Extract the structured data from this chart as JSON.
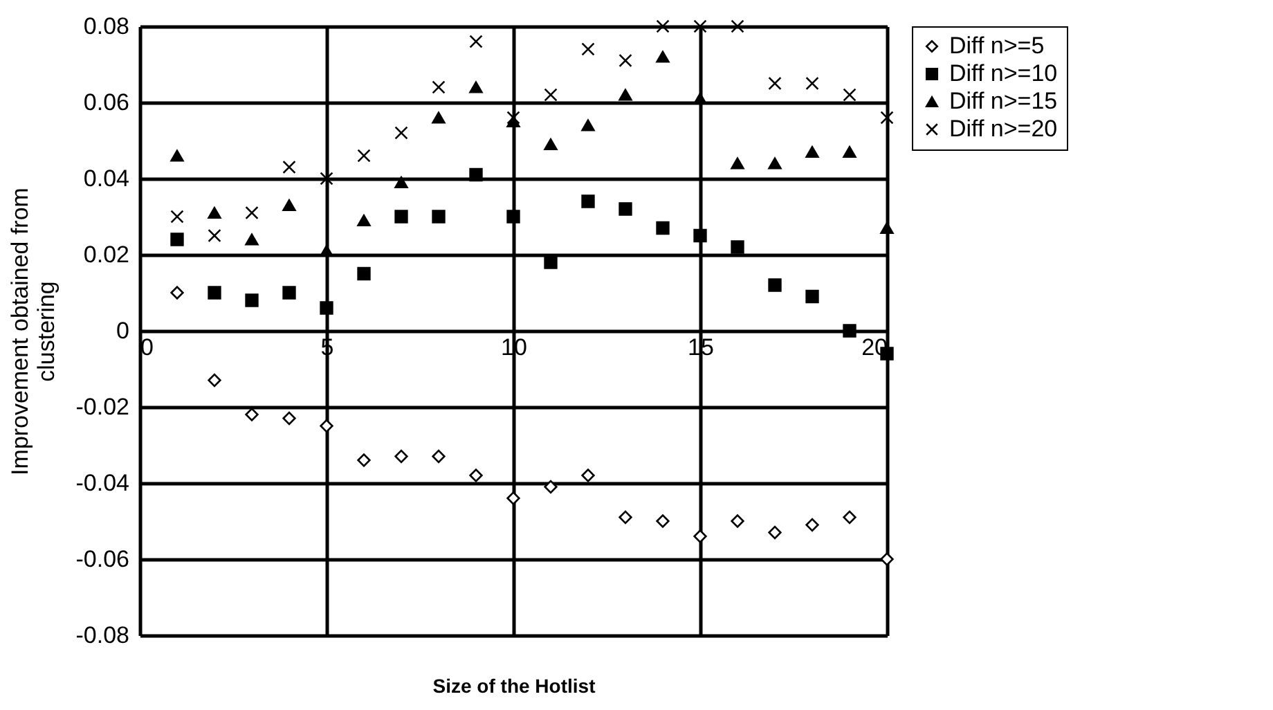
{
  "chart_data": {
    "type": "scatter",
    "xlabel": "Size of the Hotlist",
    "ylabel": "Improvement obtained from\nclustering",
    "x": [
      1,
      2,
      3,
      4,
      5,
      6,
      7,
      8,
      9,
      10,
      11,
      12,
      13,
      14,
      15,
      16,
      17,
      18,
      19,
      20
    ],
    "series": [
      {
        "name": "Diff n>=5",
        "color": "#000000",
        "marker": "diamond",
        "values": [
          0.01,
          -0.013,
          -0.022,
          -0.023,
          -0.025,
          -0.034,
          -0.033,
          -0.033,
          -0.038,
          -0.044,
          -0.041,
          -0.038,
          -0.049,
          -0.05,
          -0.054,
          -0.05,
          -0.053,
          -0.051,
          -0.049,
          -0.06
        ]
      },
      {
        "name": "Diff n>=10",
        "color": "#000000",
        "marker": "square",
        "values": [
          0.024,
          0.01,
          0.008,
          0.01,
          0.006,
          0.015,
          0.03,
          0.03,
          0.041,
          0.03,
          0.018,
          0.034,
          0.032,
          0.027,
          0.025,
          0.022,
          0.012,
          0.009,
          0.0,
          -0.006
        ]
      },
      {
        "name": "Diff n>=15",
        "color": "#000000",
        "marker": "triangle",
        "values": [
          0.046,
          0.031,
          0.024,
          0.033,
          0.021,
          0.029,
          0.039,
          0.056,
          0.064,
          0.055,
          0.049,
          0.054,
          0.062,
          0.072,
          0.061,
          0.044,
          0.044,
          0.047,
          0.047,
          0.027
        ]
      },
      {
        "name": "Diff n>=20",
        "color": "#000000",
        "marker": "cross",
        "values": [
          0.03,
          0.025,
          0.031,
          0.043,
          0.04,
          0.046,
          0.052,
          0.064,
          0.076,
          0.056,
          0.062,
          0.074,
          0.071,
          0.08,
          0.08,
          0.08,
          0.065,
          0.065,
          0.062,
          0.056
        ]
      }
    ],
    "xlim": [
      0,
      20
    ],
    "xticks": [
      0,
      5,
      10,
      15,
      20
    ],
    "ylim": [
      -0.08,
      0.08
    ],
    "yticks": [
      -0.08,
      -0.06,
      -0.04,
      -0.02,
      0,
      0.02,
      0.04,
      0.06,
      0.08
    ],
    "grid": true,
    "legend": "right"
  }
}
